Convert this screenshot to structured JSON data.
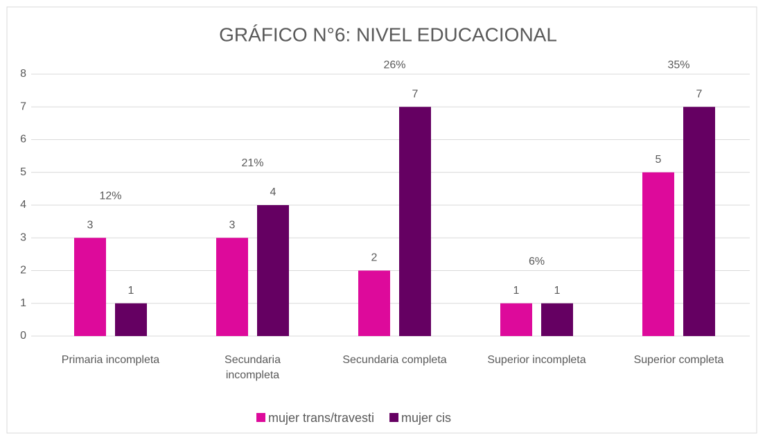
{
  "chart_data": {
    "type": "bar",
    "title": "GRÁFICO N°6: NIVEL EDUCACIONAL",
    "categories": [
      "Primaria incompleta",
      "Secundaria incompleta",
      "Secundaria completa",
      "Superior incompleta",
      "Superior completa"
    ],
    "series": [
      {
        "name": "mujer trans/travesti",
        "color": "#dd0a9b",
        "values": [
          3,
          3,
          2,
          1,
          5
        ]
      },
      {
        "name": "mujer cis",
        "color": "#650062",
        "values": [
          1,
          4,
          7,
          1,
          7
        ]
      }
    ],
    "annotations": [
      "12%",
      "21%",
      "26%",
      "6%",
      "35%"
    ],
    "ylim": [
      0,
      8
    ],
    "yticks": [
      0,
      1,
      2,
      3,
      4,
      5,
      6,
      7,
      8
    ],
    "grid": true,
    "legend": "bottom"
  }
}
